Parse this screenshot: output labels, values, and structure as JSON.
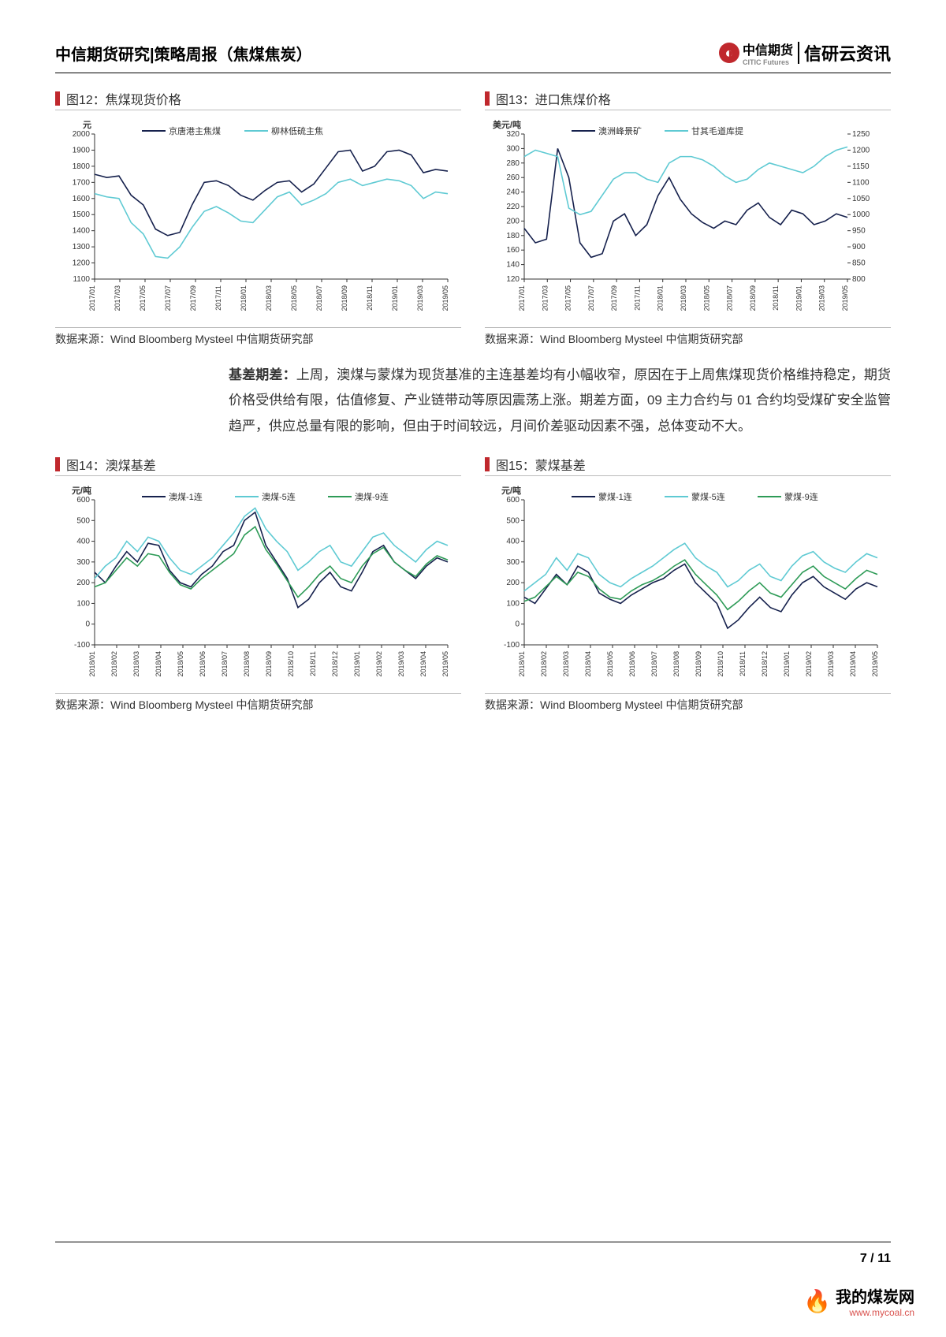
{
  "header": {
    "title": "中信期货研究|策略周报（焦煤焦炭）",
    "citic_brand": "中信期货",
    "citic_sub": "CITIC Futures",
    "xinyan": "信研云资讯"
  },
  "paragraph": {
    "lead": "基差期差：",
    "text": "上周，澳煤与蒙煤为现货基准的主连基差均有小幅收窄，原因在于上周焦煤现货价格维持稳定，期货价格受供给有限，估值修复、产业链带动等原因震荡上涨。期差方面，09 主力合约与 01 合约均受煤矿安全监管趋严，供应总量有限的影响，但由于时间较远，月间价差驱动因素不强，总体变动不大。"
  },
  "charts": {
    "c12": {
      "title": "图12：焦煤现货价格",
      "source": "数据来源：Wind Bloomberg Mysteel 中信期货研究部",
      "type": "line",
      "y_unit": "元",
      "ylim": [
        1100,
        2000
      ],
      "ytick_step": 100,
      "x_labels": [
        "2017/01",
        "2017/03",
        "2017/05",
        "2017/07",
        "2017/09",
        "2017/11",
        "2018/01",
        "2018/03",
        "2018/05",
        "2018/07",
        "2018/09",
        "2018/11",
        "2019/01",
        "2019/03",
        "2019/05"
      ],
      "colors": {
        "s1": "#16214d",
        "s2": "#5fcad3",
        "axis": "#333",
        "grid": "#333"
      },
      "legend": [
        "京唐港主焦煤",
        "柳林低硫主焦"
      ],
      "series1": [
        1750,
        1730,
        1740,
        1620,
        1560,
        1410,
        1370,
        1390,
        1560,
        1700,
        1710,
        1680,
        1620,
        1590,
        1650,
        1700,
        1710,
        1640,
        1690,
        1790,
        1890,
        1900,
        1770,
        1800,
        1890,
        1900,
        1870,
        1760,
        1780,
        1770
      ],
      "series2": [
        1630,
        1610,
        1600,
        1450,
        1380,
        1240,
        1230,
        1300,
        1420,
        1520,
        1550,
        1510,
        1460,
        1450,
        1530,
        1610,
        1640,
        1560,
        1590,
        1630,
        1700,
        1720,
        1680,
        1700,
        1720,
        1710,
        1680,
        1600,
        1640,
        1630
      ]
    },
    "c13": {
      "title": "图13：进口焦煤价格",
      "source": "数据来源：Wind Bloomberg Mysteel 中信期货研究部",
      "type": "line-dual",
      "y_unit": "美元/吨",
      "ylim_l": [
        120,
        320
      ],
      "ytick_l": 20,
      "ylim_r": [
        800,
        1250
      ],
      "ytick_r": 50,
      "x_labels": [
        "2017/01",
        "2017/03",
        "2017/05",
        "2017/07",
        "2017/09",
        "2017/11",
        "2018/01",
        "2018/03",
        "2018/05",
        "2018/07",
        "2018/09",
        "2018/11",
        "2019/01",
        "2019/03",
        "2019/05"
      ],
      "colors": {
        "s1": "#16214d",
        "s2": "#5fcad3",
        "axis": "#333"
      },
      "legend": [
        "澳洲峰景矿",
        "甘其毛道库提"
      ],
      "series1": [
        190,
        170,
        175,
        300,
        260,
        170,
        150,
        155,
        200,
        210,
        180,
        195,
        235,
        260,
        230,
        210,
        198,
        190,
        200,
        195,
        215,
        225,
        205,
        195,
        215,
        210,
        195,
        200,
        210,
        205
      ],
      "series2": [
        1180,
        1200,
        1190,
        1180,
        1020,
        1000,
        1010,
        1060,
        1110,
        1130,
        1130,
        1110,
        1100,
        1160,
        1180,
        1180,
        1170,
        1150,
        1120,
        1100,
        1110,
        1140,
        1160,
        1150,
        1140,
        1130,
        1150,
        1180,
        1200,
        1210
      ]
    },
    "c14": {
      "title": "图14：澳煤基差",
      "source": "数据来源：Wind Bloomberg Mysteel 中信期货研究部",
      "type": "line",
      "y_unit": "元/吨",
      "ylim": [
        -100,
        600
      ],
      "ytick_step": 100,
      "x_labels": [
        "2018/01",
        "2018/02",
        "2018/03",
        "2018/04",
        "2018/05",
        "2018/06",
        "2018/07",
        "2018/08",
        "2018/09",
        "2018/10",
        "2018/11",
        "2018/12",
        "2019/01",
        "2019/02",
        "2019/03",
        "2019/04",
        "2019/05"
      ],
      "colors": {
        "s1": "#16214d",
        "s2": "#5fcad3",
        "s3": "#2e9b57",
        "axis": "#333"
      },
      "legend": [
        "澳煤-1连",
        "澳煤-5连",
        "澳煤-9连"
      ],
      "series1": [
        250,
        200,
        280,
        350,
        300,
        390,
        380,
        260,
        200,
        180,
        240,
        280,
        350,
        380,
        500,
        540,
        380,
        300,
        220,
        80,
        120,
        200,
        250,
        180,
        160,
        250,
        350,
        380,
        300,
        260,
        220,
        280,
        320,
        300
      ],
      "series2": [
        220,
        280,
        320,
        400,
        350,
        420,
        400,
        320,
        260,
        240,
        280,
        320,
        380,
        440,
        520,
        560,
        460,
        400,
        350,
        260,
        300,
        350,
        380,
        300,
        280,
        350,
        420,
        440,
        380,
        340,
        300,
        360,
        400,
        380
      ],
      "series3": [
        180,
        200,
        260,
        320,
        280,
        340,
        330,
        250,
        190,
        170,
        220,
        260,
        300,
        340,
        430,
        470,
        360,
        290,
        210,
        130,
        180,
        240,
        280,
        220,
        200,
        280,
        340,
        370,
        300,
        260,
        230,
        290,
        330,
        310
      ]
    },
    "c15": {
      "title": "图15：蒙煤基差",
      "source": "数据来源：Wind Bloomberg Mysteel 中信期货研究部",
      "type": "line",
      "y_unit": "元/吨",
      "ylim": [
        -100,
        600
      ],
      "ytick_step": 100,
      "x_labels": [
        "2018/01",
        "2018/02",
        "2018/03",
        "2018/04",
        "2018/05",
        "2018/06",
        "2018/07",
        "2018/08",
        "2018/09",
        "2018/10",
        "2018/11",
        "2018/12",
        "2019/01",
        "2019/02",
        "2019/03",
        "2019/04",
        "2019/05"
      ],
      "colors": {
        "s1": "#16214d",
        "s2": "#5fcad3",
        "s3": "#2e9b57",
        "axis": "#333"
      },
      "legend": [
        "蒙煤-1连",
        "蒙煤-5连",
        "蒙煤-9连"
      ],
      "series1": [
        130,
        100,
        170,
        240,
        190,
        280,
        250,
        150,
        120,
        100,
        140,
        170,
        200,
        220,
        260,
        290,
        200,
        150,
        100,
        -20,
        20,
        80,
        130,
        80,
        60,
        140,
        200,
        230,
        180,
        150,
        120,
        170,
        200,
        180
      ],
      "series2": [
        160,
        200,
        240,
        320,
        260,
        340,
        320,
        240,
        200,
        180,
        220,
        250,
        280,
        320,
        360,
        390,
        320,
        280,
        250,
        180,
        210,
        260,
        290,
        230,
        210,
        280,
        330,
        350,
        300,
        270,
        250,
        300,
        340,
        320
      ],
      "series3": [
        110,
        130,
        180,
        230,
        190,
        250,
        230,
        170,
        130,
        120,
        160,
        190,
        210,
        240,
        280,
        310,
        240,
        190,
        140,
        70,
        110,
        160,
        200,
        150,
        130,
        190,
        250,
        280,
        230,
        200,
        170,
        220,
        260,
        240
      ]
    }
  },
  "footer": {
    "page": "7",
    "total": "11",
    "site_name": "我的煤炭网",
    "site_url": "www.mycoal.cn"
  }
}
